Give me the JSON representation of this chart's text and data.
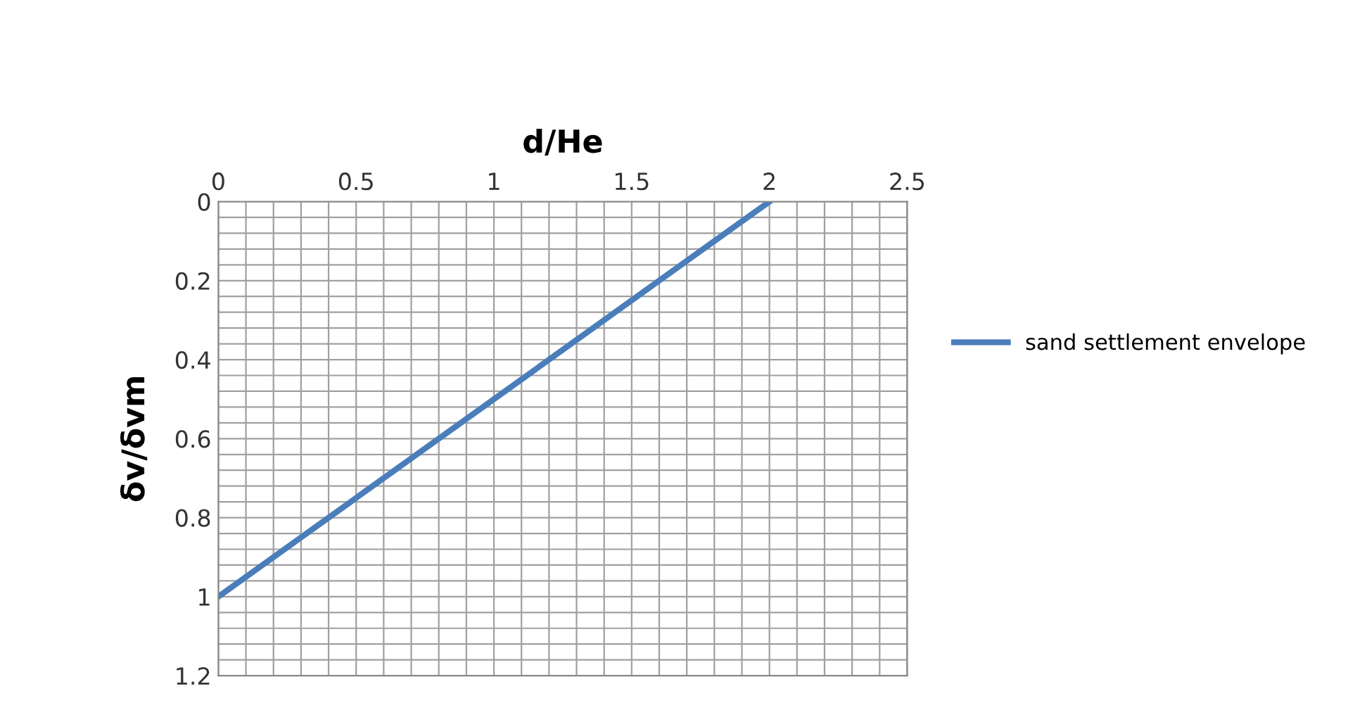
{
  "chart_data": {
    "type": "line",
    "xlabel": "d/He",
    "ylabel": "δv/δvm",
    "x": [
      0,
      2
    ],
    "series": [
      {
        "name": "sand settlement envelope",
        "color": "#4a7ebb",
        "values": [
          1,
          0
        ]
      }
    ],
    "xlim": [
      0,
      2.5
    ],
    "xticks": [
      0,
      0.5,
      1,
      1.5,
      2,
      2.5
    ],
    "ylim": [
      1.2,
      0
    ],
    "yticks": [
      0,
      0.2,
      0.4,
      0.6,
      0.8,
      1,
      1.2
    ],
    "grid": true,
    "legend": "right",
    "marker": "none",
    "line_style": "solid"
  }
}
